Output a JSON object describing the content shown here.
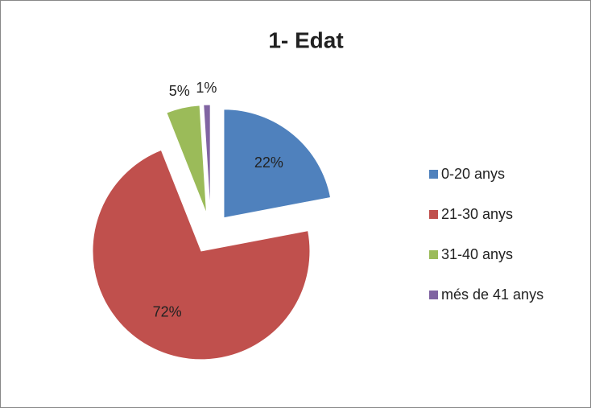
{
  "chart_data": {
    "type": "pie",
    "title": "1- Edat",
    "categories": [
      "0-20 anys",
      "21-30 anys",
      "31-40 anys",
      "més de 41 anys"
    ],
    "values": [
      22,
      72,
      5,
      1
    ],
    "value_labels": [
      "22%",
      "72%",
      "5%",
      "1%"
    ],
    "colors": [
      "#4f81bd",
      "#c0504d",
      "#9bbb59",
      "#8064a2"
    ],
    "legend": "right"
  }
}
